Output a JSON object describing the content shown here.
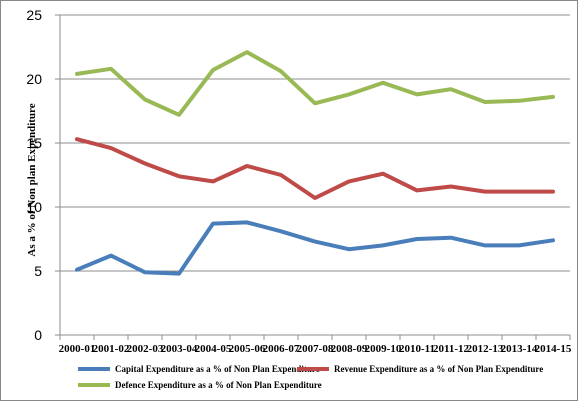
{
  "chart_data": {
    "type": "line",
    "title": "",
    "xlabel": "",
    "ylabel": "As a % of Non plan Expenditure",
    "ylim": [
      0,
      25
    ],
    "yticks": [
      "0",
      "5",
      "10",
      "15",
      "20",
      "25"
    ],
    "grid": "horizontal",
    "legend_position": "bottom",
    "categories": [
      "2000-01",
      "2001-02",
      "2002-03",
      "2003-04",
      "2004-05",
      "2005-06",
      "2006-07",
      "2007-08",
      "2008-09",
      "2009-10",
      "2010-11",
      "2011-12",
      "2012-13",
      "2013-14",
      "2014-15"
    ],
    "series": [
      {
        "name": "Capital Expenditure as a % of Non Plan Expenditure",
        "color": "#4a7ebb",
        "values": [
          5.1,
          6.2,
          4.9,
          4.8,
          8.7,
          8.8,
          8.1,
          7.3,
          6.7,
          7.0,
          7.5,
          7.6,
          7.0,
          7.0,
          7.4
        ]
      },
      {
        "name": "Revenue Expenditure as a % of Non Plan Expenditure",
        "color": "#be4b48",
        "values": [
          15.3,
          14.6,
          13.4,
          12.4,
          12.0,
          13.2,
          12.5,
          10.7,
          12.0,
          12.6,
          11.3,
          11.6,
          11.2,
          11.2,
          11.2
        ]
      },
      {
        "name": "Defence Expenditure as a % of Non Plan Expenditure",
        "color": "#98b954",
        "values": [
          20.4,
          20.8,
          18.4,
          17.2,
          20.7,
          22.1,
          20.6,
          18.1,
          18.8,
          19.7,
          18.8,
          19.2,
          18.2,
          18.3,
          18.6
        ]
      }
    ]
  }
}
